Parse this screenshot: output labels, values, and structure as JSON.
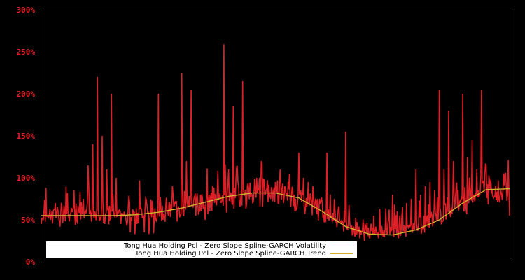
{
  "chart_data": {
    "type": "line",
    "title": "",
    "xlabel": "",
    "ylabel": "",
    "ylim": [
      0,
      300
    ],
    "y_tick_labels": [
      "0%",
      "50%",
      "100%",
      "150%",
      "200%",
      "250%",
      "300%"
    ],
    "y_tick_values": [
      0,
      50,
      100,
      150,
      200,
      250,
      300
    ],
    "grid": false,
    "legend_position": "lower-left inside plot",
    "background": "#000000",
    "frame_color": "#c8c8c8",
    "series": [
      {
        "name": "Tong Hua Holding Pcl - Zero Slope Spline-GARCH Volatility",
        "color": "#dd2027",
        "x": [
          0,
          1,
          2,
          3,
          4,
          5,
          6,
          7,
          8,
          9,
          10,
          11,
          12,
          13,
          14,
          15,
          16,
          17,
          18,
          19,
          20,
          21,
          22,
          23,
          24,
          25,
          26,
          27,
          28,
          29,
          30,
          31,
          32,
          33,
          34,
          35,
          36,
          37,
          38,
          39,
          40,
          41,
          42,
          43,
          44,
          45,
          46,
          47,
          48,
          49,
          50,
          51,
          52,
          53,
          54,
          55,
          56,
          57,
          58,
          59,
          60,
          61,
          62,
          63,
          64,
          65,
          66,
          67,
          68,
          69,
          70,
          71,
          72,
          73,
          74,
          75,
          76,
          77,
          78,
          79,
          80,
          81,
          82,
          83,
          84,
          85,
          86,
          87,
          88,
          89,
          90,
          91,
          92,
          93,
          94,
          95,
          96,
          97,
          98,
          99,
          100
        ],
        "values": [
          45,
          88,
          50,
          70,
          42,
          60,
          48,
          85,
          60,
          75,
          115,
          140,
          220,
          150,
          110,
          200,
          100,
          45,
          55,
          35,
          33,
          97,
          35,
          33,
          34,
          200,
          50,
          60,
          90,
          48,
          225,
          120,
          205,
          55,
          80,
          50,
          60,
          70,
          75,
          259,
          110,
          185,
          95,
          215,
          90,
          80,
          100,
          120,
          85,
          75,
          95,
          110,
          90,
          105,
          80,
          130,
          100,
          95,
          90,
          75,
          70,
          130,
          55,
          50,
          45,
          155,
          40,
          30,
          28,
          25,
          30,
          55,
          28,
          30,
          45,
          80,
          60,
          55,
          70,
          75,
          110,
          80,
          90,
          95,
          85,
          205,
          110,
          180,
          120,
          85,
          200,
          125,
          145,
          110,
          205,
          115,
          98,
          90,
          80,
          105,
          55
        ]
      },
      {
        "name": "Tong Hua Holding Pcl - Zero Slope Spline-GARCH Trend",
        "color": "#d4b030",
        "x": [
          0,
          5,
          10,
          15,
          20,
          25,
          30,
          35,
          40,
          45,
          50,
          55,
          60,
          65,
          70,
          75,
          80,
          85,
          90,
          95,
          100
        ],
        "values": [
          55,
          55,
          55,
          55,
          56,
          59,
          64,
          71,
          78,
          82,
          82,
          76,
          60,
          42,
          33,
          32,
          38,
          50,
          70,
          86,
          87
        ]
      }
    ],
    "trend_full_x": [
      0,
      5,
      10,
      15,
      20,
      25,
      30,
      35,
      40,
      45,
      50,
      55,
      60,
      65,
      70,
      75,
      80,
      85,
      90,
      95,
      100
    ],
    "trend_full_values": [
      55,
      55,
      55,
      55,
      56,
      60,
      66,
      73,
      79,
      82,
      82,
      73,
      55,
      40,
      32,
      33,
      42,
      58,
      75,
      86,
      86
    ]
  },
  "axis": {
    "ticks": [
      {
        "label": "300%",
        "value": 300
      },
      {
        "label": "250%",
        "value": 250
      },
      {
        "label": "200%",
        "value": 200
      },
      {
        "label": "150%",
        "value": 150
      },
      {
        "label": "100%",
        "value": 100
      },
      {
        "label": "50%",
        "value": 50
      },
      {
        "label": "0%",
        "value": 0
      }
    ]
  },
  "legend": {
    "items": [
      {
        "label": "Tong Hua Holding Pcl - Zero Slope Spline-GARCH Volatility",
        "color": "#dd2027"
      },
      {
        "label": "Tong Hua Holding Pcl - Zero Slope Spline-GARCH Trend",
        "color": "#d4b030"
      }
    ]
  }
}
